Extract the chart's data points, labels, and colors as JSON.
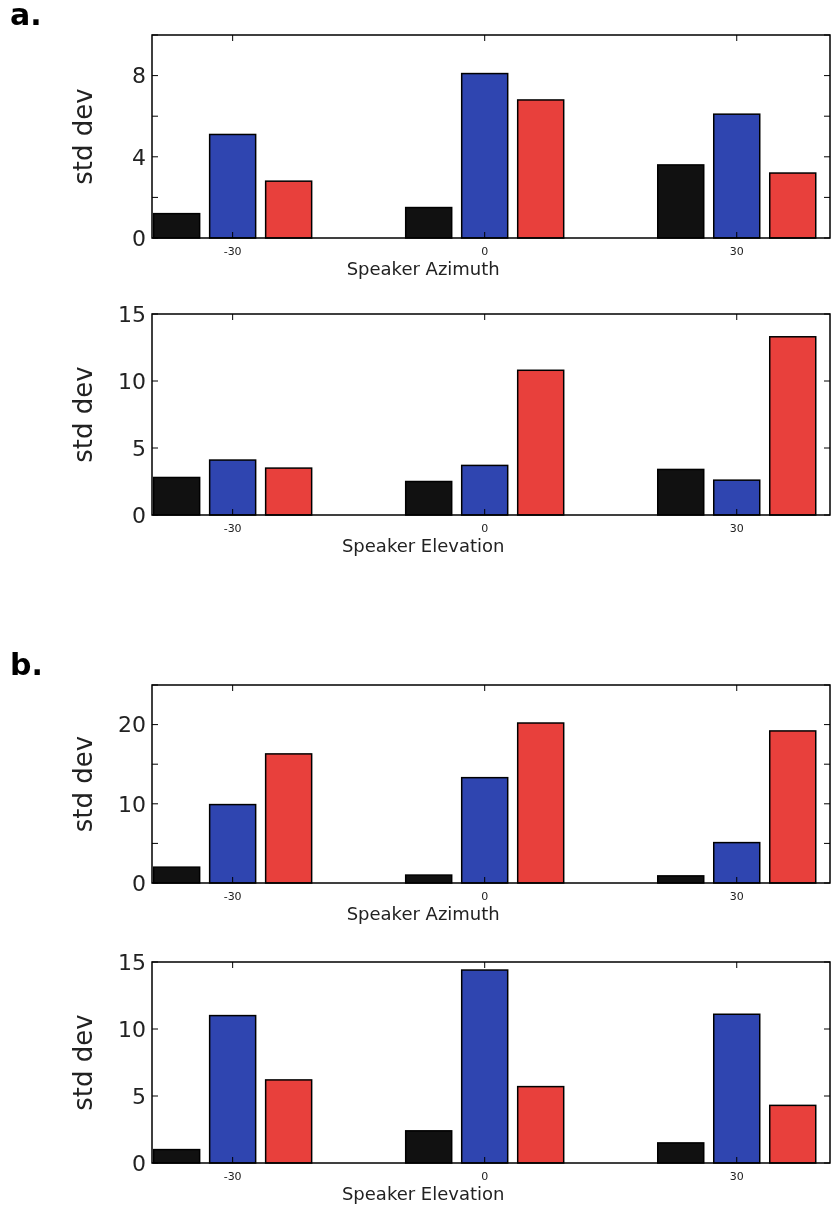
{
  "chart_data": [
    {
      "type": "bar",
      "title": "a.",
      "ylabel": "std dev",
      "xlabel": "Speaker Azimuth",
      "categories": [
        "-30",
        "0",
        "30"
      ],
      "ylim": [
        0,
        10
      ],
      "yticks": [
        0,
        {
          "value": 2,
          "label": null
        },
        4,
        {
          "value": 6,
          "label": null
        },
        8,
        {
          "value": 10,
          "label": null
        }
      ],
      "grid": false,
      "series": [
        {
          "color": "#111111",
          "values": [
            1.2,
            1.5,
            3.6
          ]
        },
        {
          "color": "#2f45b0",
          "values": [
            5.1,
            8.1,
            6.1
          ]
        },
        {
          "color": "#e8403c",
          "values": [
            2.8,
            6.8,
            3.2
          ]
        }
      ]
    },
    {
      "type": "bar",
      "ylabel": "std dev",
      "xlabel": "Speaker Elevation",
      "categories": [
        "-30",
        "0",
        "30"
      ],
      "ylim": [
        0,
        15
      ],
      "yticks": [
        0,
        5,
        10,
        15
      ],
      "grid": false,
      "series": [
        {
          "color": "#111111",
          "values": [
            2.8,
            2.5,
            3.4
          ]
        },
        {
          "color": "#2f45b0",
          "values": [
            4.1,
            3.7,
            2.6
          ]
        },
        {
          "color": "#e8403c",
          "values": [
            3.5,
            10.8,
            13.3
          ]
        }
      ]
    },
    {
      "type": "bar",
      "title": "b.",
      "ylabel": "std dev",
      "xlabel": "Speaker Azimuth",
      "categories": [
        "-30",
        "0",
        "30"
      ],
      "ylim": [
        0,
        25
      ],
      "yticks": [
        0,
        {
          "value": 5,
          "label": null
        },
        10,
        {
          "value": 15,
          "label": null
        },
        20,
        {
          "value": 25,
          "label": null
        }
      ],
      "grid": false,
      "series": [
        {
          "color": "#111111",
          "values": [
            2.0,
            1.0,
            0.9
          ]
        },
        {
          "color": "#2f45b0",
          "values": [
            9.9,
            13.3,
            5.1
          ]
        },
        {
          "color": "#e8403c",
          "values": [
            16.3,
            20.2,
            19.2
          ]
        }
      ]
    },
    {
      "type": "bar",
      "ylabel": "std dev",
      "xlabel": "Speaker Elevation",
      "categories": [
        "-30",
        "0",
        "30"
      ],
      "ylim": [
        0,
        15
      ],
      "yticks": [
        0,
        5,
        10,
        15
      ],
      "grid": false,
      "series": [
        {
          "color": "#111111",
          "values": [
            1.0,
            2.4,
            1.5
          ]
        },
        {
          "color": "#2f45b0",
          "values": [
            11.0,
            14.4,
            11.1
          ]
        },
        {
          "color": "#e8403c",
          "values": [
            6.2,
            5.7,
            4.3
          ]
        }
      ]
    }
  ]
}
